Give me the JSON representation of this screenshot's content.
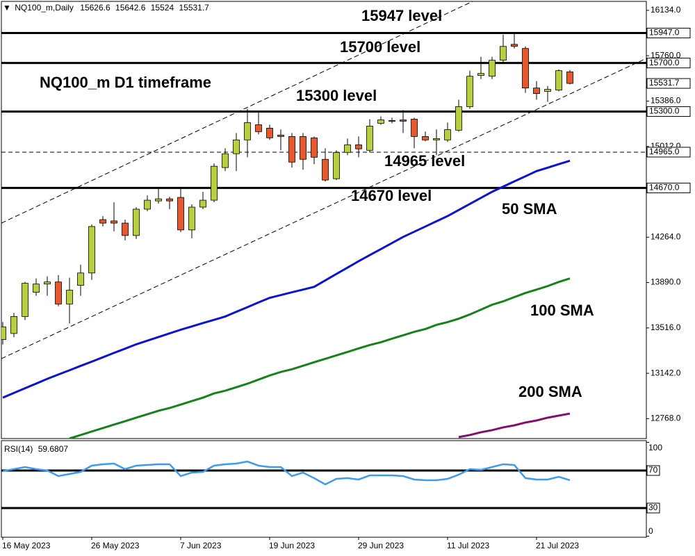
{
  "chart_data": [
    {
      "type": "candlestick",
      "symbol": "NQ100_m,Daily",
      "subtitle": "NQ100_m D1 timeframe",
      "categories": [
        "16 May 2023",
        null,
        null,
        null,
        null,
        null,
        null,
        null,
        "26 May 2023",
        null,
        null,
        null,
        null,
        null,
        null,
        null,
        "7 Jun 2023",
        null,
        null,
        null,
        null,
        null,
        null,
        null,
        "19 Jun 2023",
        null,
        null,
        null,
        null,
        null,
        null,
        null,
        "29 Jun 2023",
        null,
        null,
        null,
        null,
        null,
        null,
        null,
        "11 Jul 2023",
        null,
        null,
        null,
        null,
        null,
        null,
        null,
        "21 Jul 2023",
        null,
        null,
        null
      ],
      "open": [
        13420,
        13470,
        13610,
        13810,
        13878,
        13895,
        13713,
        13867,
        13969,
        14409,
        14398,
        14380,
        14278,
        14495,
        14563,
        14580,
        14592,
        14324,
        14512,
        14569,
        14838,
        14952,
        15066,
        15191,
        15163,
        15106,
        15094,
        15094,
        15083,
        14906,
        14746,
        14963,
        15026,
        14980,
        15203,
        15226,
        15231,
        15237,
        15094,
        15066,
        15066,
        15146,
        15340,
        15597,
        15591,
        15723,
        15854,
        15820,
        15494,
        15466,
        15477,
        15626.6
      ],
      "high": [
        13565,
        13640,
        13895,
        13924,
        13941,
        13952,
        13930,
        14038,
        14369,
        14438,
        14552,
        14409,
        14512,
        14609,
        14678,
        14598,
        14678,
        14535,
        14638,
        14872,
        14997,
        15123,
        15323,
        15294,
        15191,
        15152,
        15123,
        15123,
        15094,
        14997,
        14980,
        15077,
        15094,
        15237,
        15260,
        15249,
        15311,
        15249,
        15135,
        15152,
        15209,
        15397,
        15637,
        15751,
        15751,
        15934,
        15951,
        15837,
        15551,
        15511,
        15648,
        15642.6
      ],
      "low": [
        13380,
        13440,
        13581,
        13781,
        13781,
        13695,
        13552,
        13781,
        13912,
        14352,
        14312,
        14238,
        14249,
        14478,
        14541,
        14495,
        14306,
        14255,
        14495,
        14552,
        14809,
        14809,
        14923,
        15112,
        15066,
        14980,
        14838,
        14820,
        14866,
        14723,
        14735,
        14940,
        14923,
        14963,
        15191,
        15203,
        15123,
        14997,
        15054,
        14940,
        15049,
        15134,
        15323,
        15568,
        15568,
        15694,
        15820,
        15454,
        15397,
        15380,
        15466,
        15524.0
      ],
      "close": [
        13525,
        13610,
        13884,
        13878,
        13895,
        13713,
        13827,
        13969,
        14352,
        14380,
        14380,
        14278,
        14495,
        14569,
        14580,
        14563,
        14324,
        14512,
        14569,
        14849,
        14952,
        15066,
        15209,
        15134,
        15083,
        15094,
        14883,
        14906,
        14923,
        14735,
        14963,
        15026,
        14992,
        15180,
        15231,
        15220,
        15220,
        15094,
        15066,
        15077,
        15151,
        15340,
        15591,
        15614,
        15723,
        15837,
        15837,
        15494,
        15448,
        15483,
        15637,
        15531.7
      ],
      "up_color": "#b8d03c",
      "down_color": "#e8582c",
      "series": [
        {
          "name": "50 SMA",
          "color": "#0a14d6",
          "values": [
            12941,
            12980,
            13019,
            13057,
            13096,
            13132,
            13167,
            13203,
            13238,
            13274,
            13310,
            13345,
            13381,
            13411,
            13441,
            13471,
            13501,
            13528,
            13556,
            13583,
            13610,
            13649,
            13687,
            13726,
            13764,
            13787,
            13810,
            13832,
            13855,
            13908,
            13961,
            14013,
            14066,
            14116,
            14166,
            14216,
            14266,
            14309,
            14352,
            14395,
            14438,
            14488,
            14538,
            14588,
            14638,
            14681,
            14724,
            14766,
            14809,
            14837,
            14866,
            14894
          ]
        },
        {
          "name": "100 SMA",
          "color": "#15821a",
          "values": [
            null,
            null,
            null,
            null,
            null,
            null,
            12605,
            12633,
            12662,
            12690,
            12719,
            12747,
            12776,
            12804,
            12833,
            12856,
            12884,
            12913,
            12941,
            12976,
            12998,
            13027,
            13056,
            13090,
            13124,
            13153,
            13175,
            13204,
            13233,
            13261,
            13290,
            13318,
            13347,
            13375,
            13398,
            13427,
            13455,
            13484,
            13507,
            13541,
            13564,
            13592,
            13627,
            13667,
            13707,
            13735,
            13770,
            13804,
            13832,
            13861,
            13895,
            13924
          ]
        },
        {
          "name": "200 SMA",
          "color": "#80106e",
          "values": [
            null,
            null,
            null,
            null,
            null,
            null,
            null,
            null,
            null,
            null,
            null,
            null,
            null,
            null,
            null,
            null,
            null,
            null,
            null,
            null,
            null,
            null,
            null,
            null,
            null,
            null,
            null,
            null,
            null,
            null,
            null,
            null,
            null,
            null,
            null,
            null,
            null,
            null,
            null,
            null,
            null,
            12616,
            12633,
            12656,
            12673,
            12696,
            12713,
            12736,
            12753,
            12776,
            12793,
            12810
          ]
        }
      ],
      "levels": [
        {
          "value": 15947,
          "label": "15947.0",
          "text": "15947 level",
          "line_style": "solid"
        },
        {
          "value": 15700,
          "label": "15700.0",
          "text": "15700 level",
          "line_style": "solid"
        },
        {
          "value": 15300,
          "label": "15300.0",
          "text": "15300 level",
          "line_style": "solid"
        },
        {
          "value": 14965,
          "label": "14965.0",
          "text": "14965 level",
          "line_style": "dashed"
        },
        {
          "value": 14670,
          "label": "14670.0",
          "text": "14670 level",
          "line_style": "solid"
        }
      ],
      "ylim": [
        12604,
        16208
      ],
      "yticks": [
        {
          "value": 16134,
          "label": "16134.0"
        },
        {
          "value": 15760,
          "label": "15760.0"
        },
        {
          "value": 15386,
          "label": "15386.0"
        },
        {
          "value": 15012,
          "label": "15012.0"
        },
        {
          "value": 14264,
          "label": "14264.0"
        },
        {
          "value": 13890,
          "label": "13890.0"
        },
        {
          "value": 13516,
          "label": "13516.0"
        },
        {
          "value": 13142,
          "label": "13142.0"
        },
        {
          "value": 12768,
          "label": "12768.0"
        }
      ]
    },
    {
      "type": "line",
      "title": "RSI(14)",
      "series": [
        {
          "name": "RSI(14)",
          "color": "#3a9cf0",
          "values": [
            69.3,
            71.5,
            73.7,
            71.5,
            70,
            64.1,
            66.3,
            68.5,
            75.2,
            76.7,
            77.4,
            71.5,
            75.2,
            75.9,
            76.7,
            76.7,
            64.1,
            67.8,
            68.5,
            75.2,
            76.7,
            77.4,
            79.6,
            75.2,
            73.7,
            73.7,
            64.1,
            67.8,
            61.9,
            55.2,
            61.1,
            61.9,
            60.4,
            64.8,
            64.8,
            64.8,
            64.1,
            60.4,
            59.6,
            59.6,
            61.1,
            65.6,
            71.5,
            70.7,
            73.7,
            76.7,
            75.9,
            61.9,
            60.4,
            60.4,
            63.3,
            59.6807
          ]
        }
      ],
      "levels": [
        70,
        30
      ],
      "ylim": [
        0,
        100
      ],
      "yticks": [
        0,
        100
      ]
    }
  ]
}
